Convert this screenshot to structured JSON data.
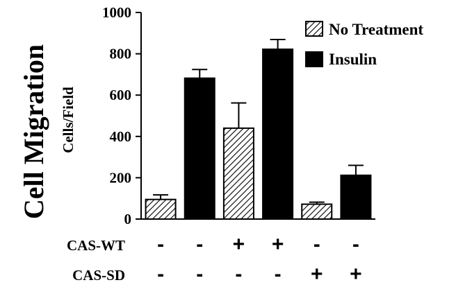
{
  "chart_data": {
    "type": "bar",
    "title": "",
    "xlabel": "",
    "ylabel": "Cell Migration",
    "ylabel_sub": "Cells/Field",
    "ylim": [
      0,
      1000
    ],
    "yticks": [
      0,
      200,
      400,
      600,
      800,
      1000
    ],
    "y_tick_labels": [
      "0",
      "200",
      "400",
      "600",
      "800",
      "1000"
    ],
    "grid": false,
    "legend_position": "top-right",
    "series": [
      {
        "name": "No Treatment",
        "fill": "hatched",
        "color": "#000000"
      },
      {
        "name": "Insulin",
        "fill": "solid",
        "color": "#000000"
      }
    ],
    "bars": [
      {
        "series": "No Treatment",
        "value": 95,
        "error": 22
      },
      {
        "series": "Insulin",
        "value": 682,
        "error": 42
      },
      {
        "series": "No Treatment",
        "value": 440,
        "error": 122
      },
      {
        "series": "Insulin",
        "value": 822,
        "error": 47
      },
      {
        "series": "No Treatment",
        "value": 72,
        "error": 10
      },
      {
        "series": "Insulin",
        "value": 212,
        "error": 48
      }
    ],
    "conditions": [
      {
        "label": "CAS-WT",
        "signs": [
          "-",
          "-",
          "+",
          "+",
          "-",
          "-"
        ]
      },
      {
        "label": "CAS-SD",
        "signs": [
          "-",
          "-",
          "-",
          "-",
          "+",
          "+"
        ]
      }
    ]
  }
}
